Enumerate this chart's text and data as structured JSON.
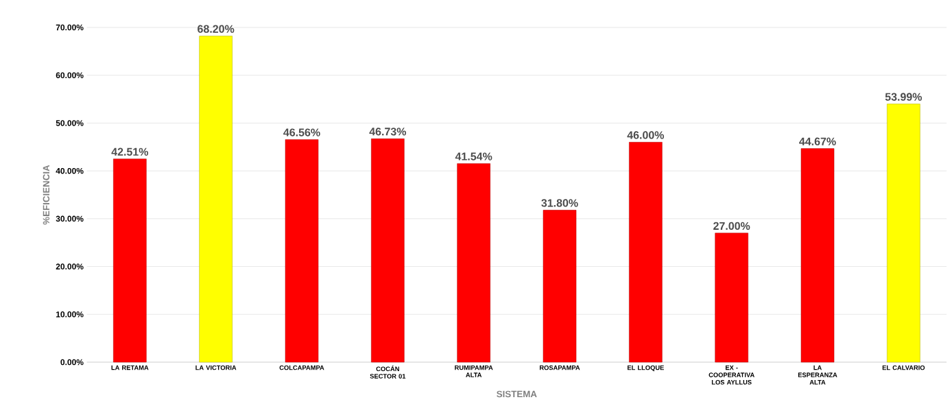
{
  "chart_data": {
    "type": "bar",
    "xlabel": "SISTEMA",
    "ylabel": "%EFICIENCIA",
    "categories": [
      "LA RETAMA",
      "LA VICTORIA",
      "COLCAPAMPA",
      "COCÁN SECTOR 01",
      "RUMIPAMPA ALTA",
      "ROSAPAMPA",
      "EL LLOQUE",
      "EX - COOPERATIVA LOS AYLLUS",
      "LA ESPERANZA ALTA",
      "EL CALVARIO"
    ],
    "values": [
      42.51,
      68.2,
      46.56,
      46.73,
      41.54,
      31.8,
      46.0,
      27.0,
      44.67,
      53.99
    ],
    "value_labels": [
      "42.51%",
      "68.20%",
      "46.56%",
      "46.73%",
      "41.54%",
      "31.80%",
      "46.00%",
      "27.00%",
      "44.67%",
      "53.99%"
    ],
    "colors": [
      "#ff0000",
      "#ffff00",
      "#ff0000",
      "#ff0000",
      "#ff0000",
      "#ff0000",
      "#ff0000",
      "#ff0000",
      "#ff0000",
      "#ffff00"
    ],
    "ylim": [
      0,
      70
    ],
    "yticks": [
      {
        "value": 0,
        "label": "0.00%"
      },
      {
        "value": 10,
        "label": "10.00%"
      },
      {
        "value": 20,
        "label": "20.00%"
      },
      {
        "value": 30,
        "label": "30.00%"
      },
      {
        "value": 40,
        "label": "40.00%"
      },
      {
        "value": 50,
        "label": "50.00%"
      },
      {
        "value": 60,
        "label": "60.00%"
      },
      {
        "value": 70,
        "label": "70.00%"
      }
    ],
    "grid": "y"
  }
}
